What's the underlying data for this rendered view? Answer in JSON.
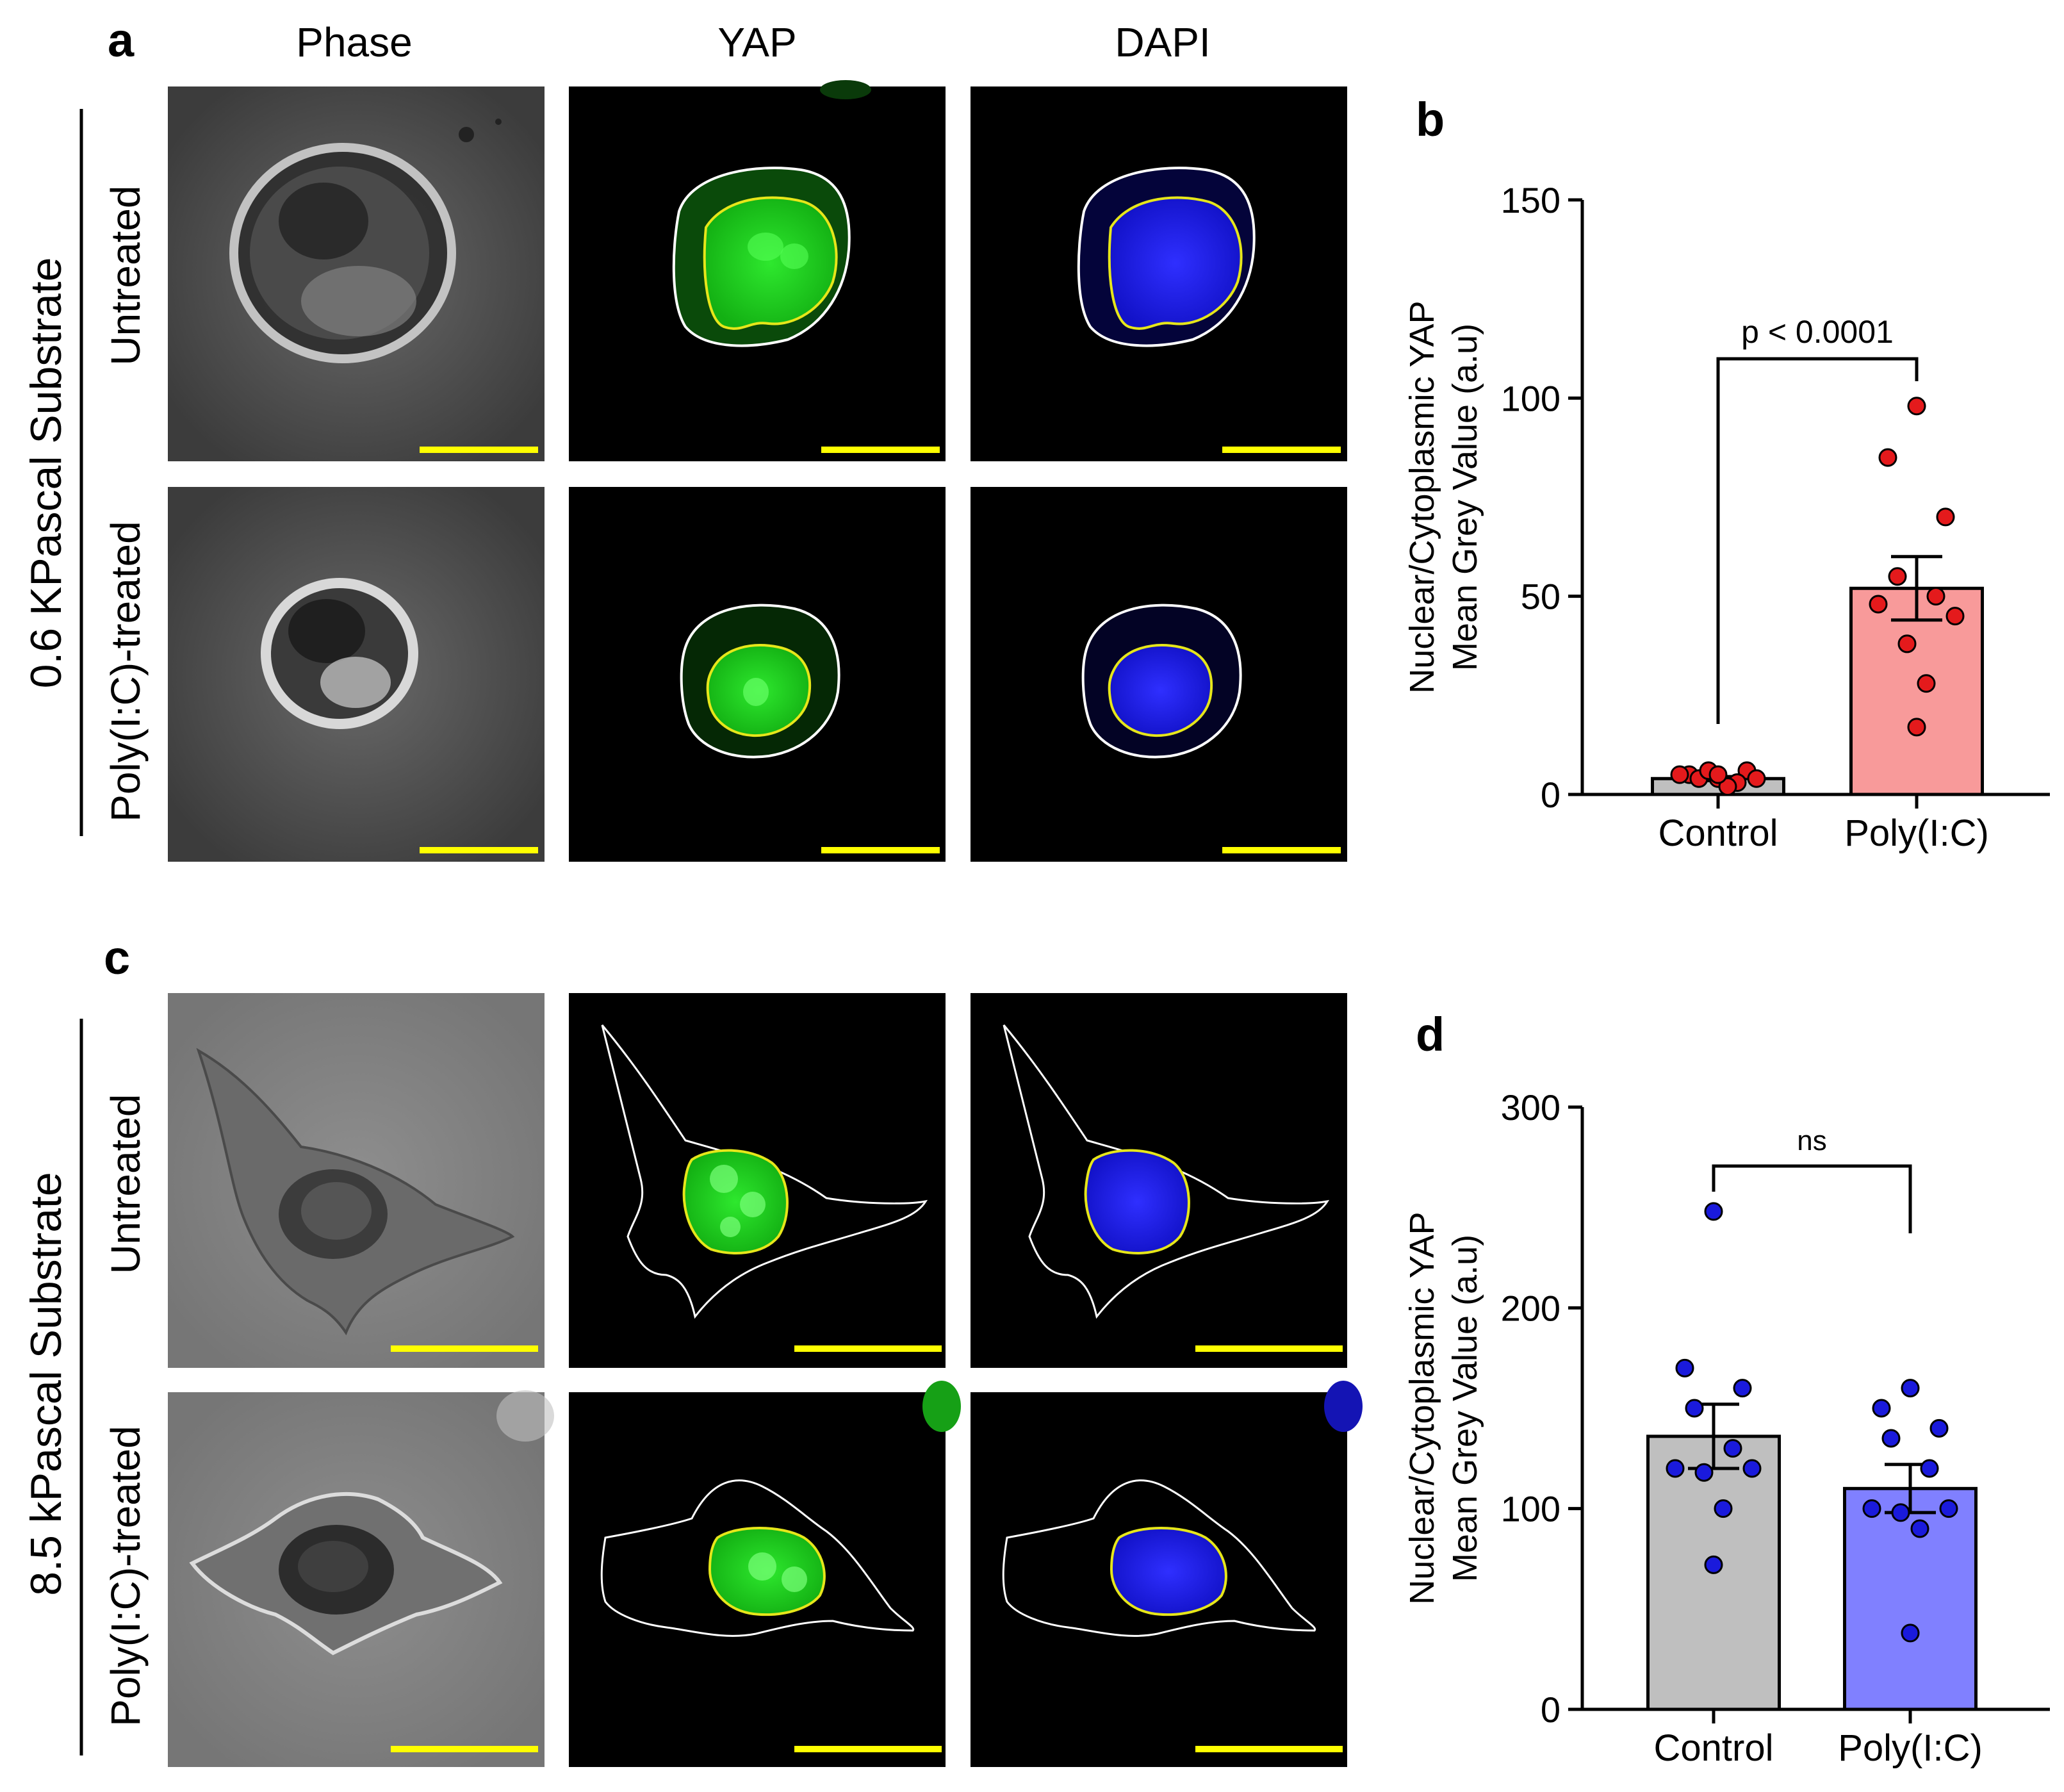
{
  "panels": {
    "a": "a",
    "b": "b",
    "c": "c",
    "d": "d"
  },
  "columns": [
    "Phase",
    "YAP",
    "DAPI"
  ],
  "substrates": {
    "top": "0.6 KPascal Substrate",
    "bottom": "8.5 kPascal Substrate"
  },
  "rows": {
    "untreated": "Untreated",
    "treated": "Poly(I:C)-treated"
  },
  "chart_data": [
    {
      "panel": "b",
      "type": "bar",
      "categories": [
        "Control",
        "Poly(I:C)"
      ],
      "ylabel_line1": "Nuclear/Cytoplasmic YAP",
      "ylabel_line2": "Mean Grey Value (a.u)",
      "ylim": [
        0,
        150
      ],
      "yticks": [
        0,
        50,
        100,
        150
      ],
      "means": [
        4,
        52
      ],
      "sem": [
        0.5,
        8
      ],
      "points": [
        [
          4,
          5,
          6,
          4,
          3,
          5,
          4,
          6,
          2,
          5
        ],
        [
          98,
          85,
          70,
          55,
          50,
          48,
          45,
          38,
          28,
          17
        ]
      ],
      "bar_colors": [
        "#bfbfbf",
        "#f89a9a"
      ],
      "point_color": "#e41a1c",
      "significance": "p < 0.0001"
    },
    {
      "panel": "d",
      "type": "bar",
      "categories": [
        "Control",
        "Poly(I:C)"
      ],
      "ylabel_line1": "Nuclear/Cytoplasmic YAP",
      "ylabel_line2": "Mean Grey Value (a.u)",
      "ylim": [
        0,
        300
      ],
      "yticks": [
        0,
        100,
        200,
        300
      ],
      "means": [
        136,
        110
      ],
      "sem": [
        16,
        12
      ],
      "points": [
        [
          248,
          170,
          160,
          150,
          130,
          120,
          120,
          118,
          100,
          72
        ],
        [
          160,
          150,
          140,
          135,
          120,
          100,
          100,
          98,
          90,
          38
        ]
      ],
      "bar_colors": [
        "#bfbfbf",
        "#8080ff"
      ],
      "point_color": "#1a1adc",
      "significance": "ns"
    }
  ]
}
